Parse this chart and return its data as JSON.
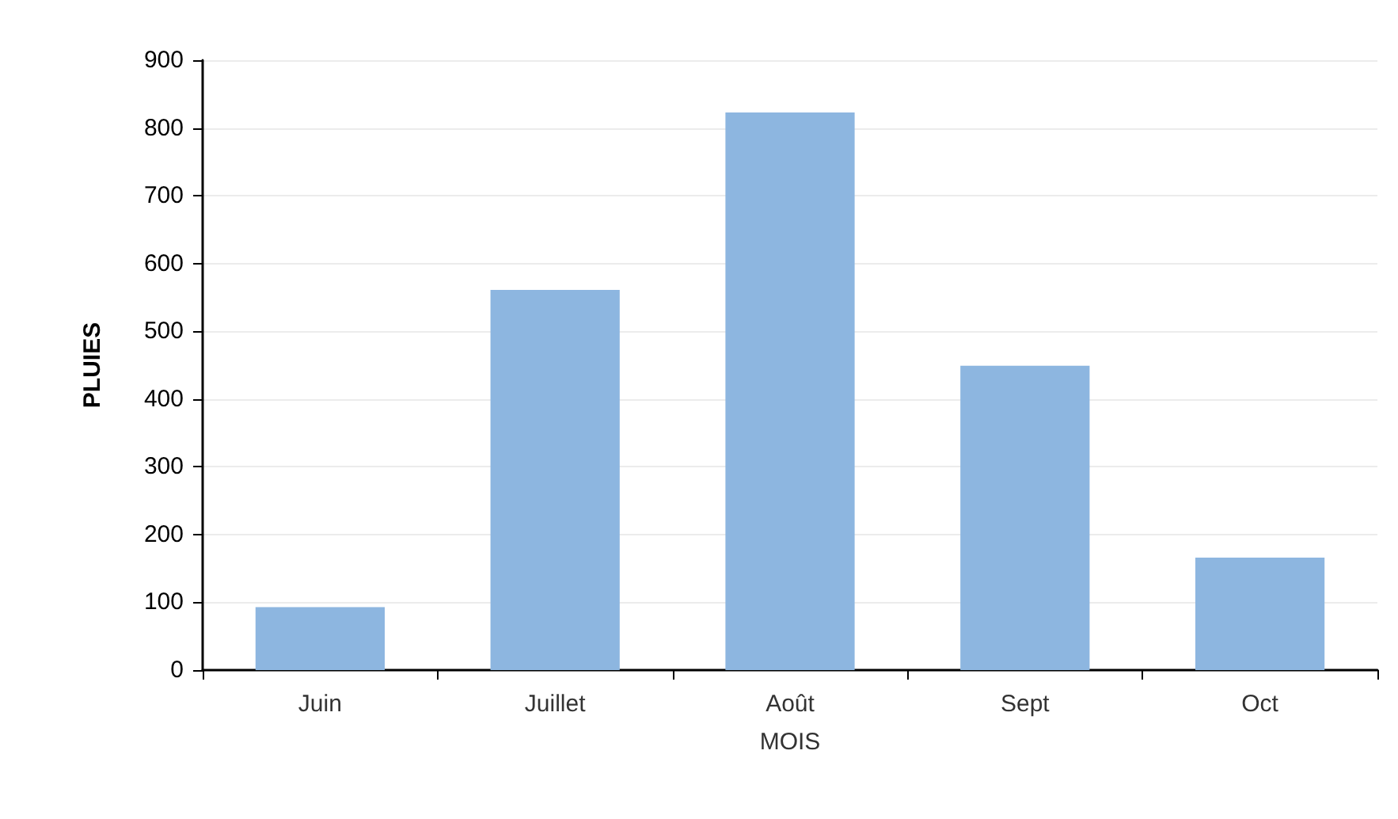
{
  "chart_data": {
    "type": "bar",
    "xlabel": "MOIS",
    "ylabel": "PLUIES",
    "categories": [
      "Juin",
      "Juillet",
      "Août",
      "Sept",
      "Oct"
    ],
    "values": [
      93,
      561,
      823,
      449,
      166
    ],
    "color": "#8db6e0",
    "ylim": [
      0,
      900
    ],
    "yticks": [
      0,
      100,
      200,
      300,
      400,
      500,
      600,
      700,
      800,
      900
    ],
    "grid": "y"
  }
}
